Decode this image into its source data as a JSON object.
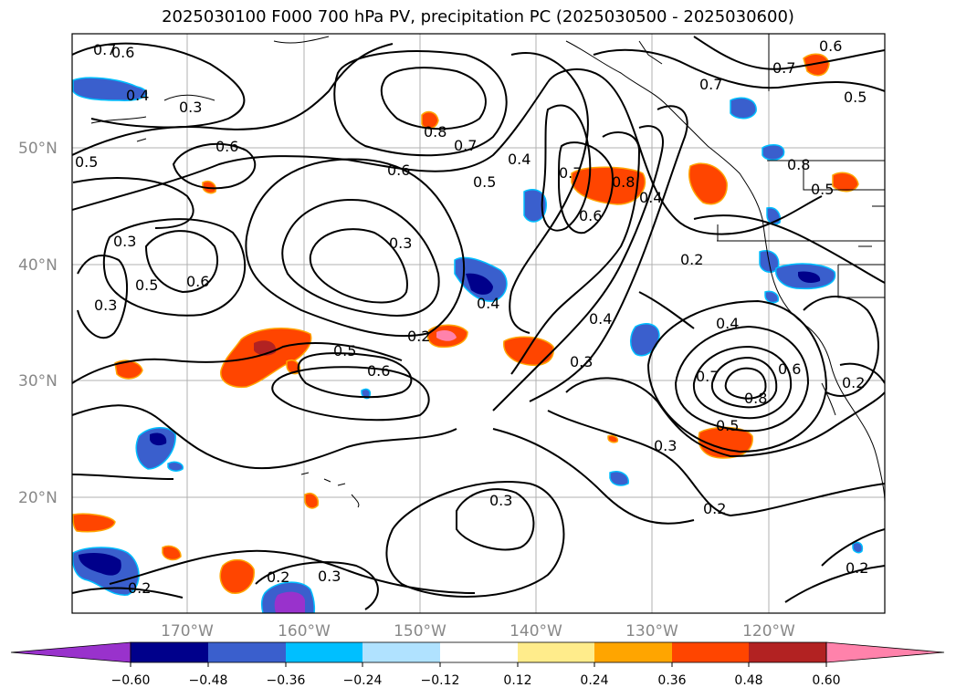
{
  "title": "2025030100 F000 700 hPa PV, precipitation PC (2025030500 - 2025030600)",
  "map": {
    "lat_labels": [
      "50°N",
      "40°N",
      "30°N",
      "20°N"
    ],
    "lon_labels": [
      "170°W",
      "160°W",
      "150°W",
      "140°W",
      "130°W",
      "120°W"
    ],
    "contour_labels": [
      "0.7",
      "0.6",
      "0.4",
      "0.3",
      "0.5",
      "0.6",
      "0.8",
      "0.7",
      "0.6",
      "0.5",
      "0.4",
      "0.7",
      "0.8",
      "0.4",
      "0.7",
      "0.5",
      "0.6",
      "0.8",
      "0.5",
      "0.3",
      "0.5",
      "0.6",
      "0.3",
      "0.3",
      "0.2",
      "0.5",
      "0.6",
      "0.4",
      "0.4",
      "0.2",
      "0.4",
      "0.7",
      "0.8",
      "0.6",
      "0.5",
      "0.3",
      "0.3",
      "0.3",
      "0.2",
      "0.2",
      "0.2",
      "0.3",
      "0.2",
      "0.2",
      "0.6",
      "0.7"
    ],
    "colors": {
      "contour": "#000000",
      "gridline": "#b0b0b0",
      "coastline": "#000000"
    }
  },
  "colorbar": {
    "ticks": [
      "−0.60",
      "−0.48",
      "−0.36",
      "−0.24",
      "−0.12",
      "0.12",
      "0.24",
      "0.36",
      "0.48",
      "0.60"
    ],
    "colors": [
      "#9932cc",
      "#00008b",
      "#3a5fcd",
      "#00bfff",
      "#b0e2ff",
      "#ffffff",
      "#ffec8b",
      "#ffa500",
      "#ff4500",
      "#b22222",
      "#ff82ab"
    ]
  }
}
